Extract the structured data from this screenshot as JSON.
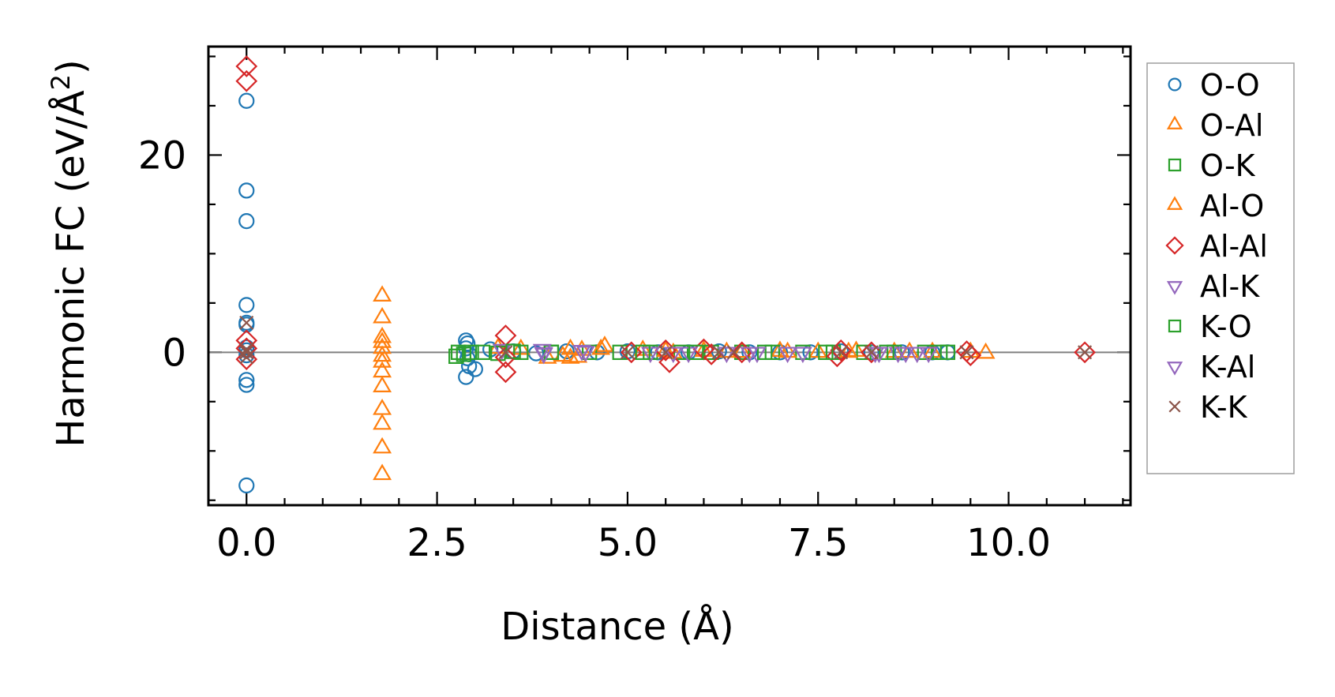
{
  "chart_data": {
    "type": "scatter",
    "title": "",
    "xlabel": "Distance (Å)",
    "ylabel": "Harmonic FC (eV/Å",
    "ylabel_sup": "2",
    "ylabel_end": ")",
    "xlim": [
      -0.5,
      11.6
    ],
    "ylim": [
      -15.5,
      31.0
    ],
    "xticks": [
      0.0,
      2.5,
      5.0,
      7.5,
      10.0
    ],
    "xtick_labels": [
      "0.0",
      "2.5",
      "5.0",
      "7.5",
      "10.0"
    ],
    "yticks": [
      0,
      20
    ],
    "ytick_labels": [
      "0",
      "20"
    ],
    "x_minor_step": 0.5,
    "y_minor_step": 5,
    "zero_line": true,
    "grid": false,
    "legend_position": "outside-right",
    "series": [
      {
        "name": "O-O",
        "marker": "circle",
        "color": "#1f77b4",
        "points": [
          [
            0,
            25.5
          ],
          [
            0,
            16.4
          ],
          [
            0,
            13.3
          ],
          [
            0,
            4.8
          ],
          [
            0,
            3.0
          ],
          [
            0,
            2.8
          ],
          [
            0,
            0.5
          ],
          [
            0,
            0.2
          ],
          [
            0,
            -0.3
          ],
          [
            0,
            -2.8
          ],
          [
            0,
            -3.3
          ],
          [
            0,
            -13.5
          ],
          [
            2.88,
            1.2
          ],
          [
            2.9,
            0.9
          ],
          [
            2.88,
            0.4
          ],
          [
            2.92,
            -0.2
          ],
          [
            2.9,
            -0.6
          ],
          [
            2.92,
            -1.4
          ],
          [
            2.88,
            -2.5
          ],
          [
            3.0,
            -1.7
          ],
          [
            3.2,
            0.3
          ],
          [
            3.5,
            0.1
          ],
          [
            3.8,
            -0.1
          ],
          [
            4.2,
            0.1
          ],
          [
            4.6,
            0.0
          ],
          [
            5.0,
            0.1
          ],
          [
            5.4,
            0.0
          ],
          [
            5.8,
            0.0
          ],
          [
            6.2,
            0.1
          ],
          [
            6.6,
            0.0
          ],
          [
            7.0,
            0.0
          ],
          [
            7.4,
            0.0
          ],
          [
            7.8,
            0.1
          ],
          [
            8.2,
            0.0
          ],
          [
            8.6,
            0.0
          ],
          [
            9.0,
            0.0
          ],
          [
            9.2,
            0.0
          ]
        ]
      },
      {
        "name": "O-Al",
        "marker": "triangle-up",
        "color": "#ff7f0e",
        "points": [
          [
            1.78,
            5.7
          ],
          [
            1.78,
            3.5
          ],
          [
            1.78,
            1.5
          ],
          [
            1.78,
            1.0
          ],
          [
            1.78,
            0.4
          ],
          [
            1.78,
            -0.4
          ],
          [
            1.78,
            -1.0
          ],
          [
            1.78,
            -2.0
          ],
          [
            1.78,
            -3.5
          ],
          [
            1.78,
            -5.8
          ],
          [
            1.78,
            -7.3
          ],
          [
            1.78,
            -9.7
          ],
          [
            1.78,
            -12.4
          ],
          [
            3.3,
            0.4
          ],
          [
            3.6,
            0.3
          ],
          [
            3.95,
            -0.6
          ],
          [
            4.15,
            -0.4
          ],
          [
            4.25,
            0.3
          ],
          [
            4.35,
            -0.5
          ],
          [
            4.7,
            0.6
          ],
          [
            5.2,
            0.2
          ],
          [
            5.6,
            -0.1
          ],
          [
            6.0,
            0.1
          ],
          [
            6.5,
            0.0
          ],
          [
            7.0,
            0.1
          ],
          [
            7.5,
            0.0
          ],
          [
            8.0,
            0.1
          ],
          [
            8.5,
            0.0
          ],
          [
            9.0,
            0.0
          ],
          [
            9.7,
            -0.1
          ]
        ]
      },
      {
        "name": "O-K",
        "marker": "square",
        "color": "#2ca02c",
        "points": [
          [
            2.75,
            -0.4
          ],
          [
            2.78,
            0.0
          ],
          [
            2.85,
            -0.2
          ],
          [
            3.1,
            0.0
          ],
          [
            3.3,
            -0.1
          ],
          [
            3.6,
            0.0
          ],
          [
            4.0,
            0.0
          ],
          [
            4.5,
            0.0
          ],
          [
            4.9,
            0.0
          ],
          [
            5.3,
            0.0
          ],
          [
            5.7,
            0.0
          ],
          [
            6.1,
            0.0
          ],
          [
            6.5,
            0.0
          ],
          [
            6.9,
            0.0
          ],
          [
            7.3,
            0.0
          ],
          [
            7.7,
            0.0
          ],
          [
            8.1,
            0.0
          ],
          [
            8.5,
            0.0
          ],
          [
            8.9,
            0.0
          ],
          [
            9.1,
            0.0
          ]
        ]
      },
      {
        "name": "Al-O",
        "marker": "triangle-up",
        "color": "#ff7f0e",
        "points": [
          [
            4.25,
            -0.6
          ],
          [
            4.4,
            0.2
          ],
          [
            4.65,
            0.3
          ],
          [
            5.5,
            0.1
          ],
          [
            6.3,
            0.0
          ],
          [
            7.1,
            0.0
          ],
          [
            7.9,
            0.0
          ],
          [
            8.7,
            0.0
          ],
          [
            9.5,
            0.0
          ]
        ]
      },
      {
        "name": "Al-Al",
        "marker": "diamond",
        "color": "#d62728",
        "points": [
          [
            0,
            29.0
          ],
          [
            0,
            27.5
          ],
          [
            0,
            1.2
          ],
          [
            0,
            0.4
          ],
          [
            0,
            -0.7
          ],
          [
            3.4,
            1.7
          ],
          [
            3.4,
            -0.5
          ],
          [
            3.4,
            -2.0
          ],
          [
            5.05,
            0.0
          ],
          [
            5.5,
            0.2
          ],
          [
            5.55,
            -1.0
          ],
          [
            6.0,
            0.3
          ],
          [
            6.1,
            -0.2
          ],
          [
            6.5,
            0.0
          ],
          [
            7.8,
            0.2
          ],
          [
            7.75,
            -0.4
          ],
          [
            8.2,
            0.0
          ],
          [
            9.45,
            0.1
          ],
          [
            9.5,
            -0.3
          ],
          [
            11.0,
            0.0
          ]
        ]
      },
      {
        "name": "Al-K",
        "marker": "triangle-down",
        "color": "#9467bd",
        "points": [
          [
            3.35,
            0.3
          ],
          [
            3.9,
            0.0
          ],
          [
            4.4,
            0.2
          ],
          [
            5.3,
            0.0
          ],
          [
            5.8,
            0.0
          ],
          [
            6.3,
            0.0
          ],
          [
            6.7,
            0.0
          ],
          [
            7.1,
            0.0
          ],
          [
            8.25,
            0.0
          ],
          [
            8.55,
            0.0
          ],
          [
            8.8,
            0.0
          ]
        ]
      },
      {
        "name": "K-O",
        "marker": "square",
        "color": "#2ca02c",
        "points": [
          [
            2.95,
            0.0
          ],
          [
            3.5,
            0.1
          ],
          [
            4.0,
            0.0
          ],
          [
            5.2,
            0.0
          ],
          [
            5.9,
            0.0
          ],
          [
            6.8,
            0.0
          ],
          [
            7.6,
            0.0
          ],
          [
            8.4,
            0.0
          ],
          [
            9.2,
            0.0
          ]
        ]
      },
      {
        "name": "K-Al",
        "marker": "triangle-down",
        "color": "#9467bd",
        "points": [
          [
            3.88,
            0.3
          ],
          [
            3.9,
            -0.1
          ],
          [
            4.45,
            0.1
          ],
          [
            5.6,
            0.0
          ],
          [
            6.6,
            0.0
          ],
          [
            7.3,
            0.0
          ],
          [
            8.3,
            0.0
          ],
          [
            8.65,
            0.0
          ],
          [
            8.95,
            0.0
          ]
        ]
      },
      {
        "name": "K-K",
        "marker": "x",
        "color": "#8c564b",
        "points": [
          [
            0,
            3.0
          ],
          [
            0,
            0.3
          ],
          [
            0,
            0.0
          ],
          [
            0,
            -0.5
          ],
          [
            3.4,
            0.0
          ],
          [
            5.0,
            0.0
          ],
          [
            5.5,
            0.0
          ],
          [
            6.2,
            0.0
          ],
          [
            6.4,
            0.0
          ],
          [
            7.8,
            0.0
          ],
          [
            8.2,
            0.0
          ],
          [
            9.45,
            0.0
          ],
          [
            11.0,
            0.0
          ]
        ]
      }
    ]
  }
}
